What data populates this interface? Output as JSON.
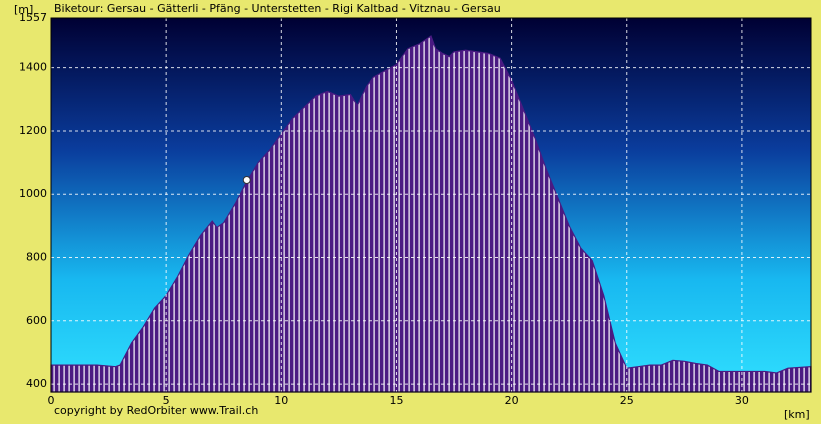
{
  "chart_data": {
    "type": "area",
    "title": "Biketour: Gersau - Gätterli - Pfäng - Unterstetten - Rigi Kaltbad - Vitznau - Gersau",
    "y_label": "[m]",
    "x_label": "[km]",
    "credit": "copyright by RedOrbiter www.Trail.ch",
    "color": "#4a1a82",
    "grid": true,
    "xlim": [
      0,
      33
    ],
    "ylim": [
      375,
      1557
    ],
    "xticks": [
      0,
      5,
      10,
      15,
      20,
      25,
      30
    ],
    "yticks": [
      400,
      600,
      800,
      1000,
      1200,
      1400,
      1557
    ],
    "marker": {
      "x": 8.5,
      "y": 1045
    },
    "x": [
      0,
      2,
      2.8,
      3,
      3.5,
      4,
      4.5,
      5,
      5.5,
      6,
      6.5,
      7,
      7.2,
      7.5,
      8,
      8.5,
      9,
      9.5,
      10,
      10.5,
      11,
      11.5,
      12,
      12.5,
      13,
      13.3,
      13.7,
      14,
      14.5,
      15,
      15.5,
      16,
      16.5,
      16.7,
      17,
      17.3,
      17.5,
      18,
      18.5,
      19,
      19.5,
      20,
      20.5,
      21,
      21.5,
      22,
      22.5,
      23,
      23.5,
      24,
      24.5,
      25,
      25.5,
      26,
      26.5,
      27,
      27.5,
      28,
      28.5,
      29,
      29.5,
      30,
      31,
      31.5,
      32,
      33
    ],
    "values": [
      460,
      460,
      455,
      460,
      530,
      580,
      640,
      680,
      740,
      810,
      870,
      915,
      895,
      910,
      970,
      1040,
      1100,
      1140,
      1190,
      1240,
      1275,
      1310,
      1325,
      1310,
      1315,
      1280,
      1340,
      1370,
      1390,
      1410,
      1460,
      1475,
      1500,
      1460,
      1445,
      1435,
      1450,
      1455,
      1450,
      1445,
      1430,
      1360,
      1270,
      1180,
      1080,
      990,
      900,
      830,
      790,
      680,
      530,
      450,
      455,
      460,
      460,
      475,
      472,
      465,
      460,
      440,
      440,
      440,
      440,
      435,
      450,
      455
    ]
  }
}
